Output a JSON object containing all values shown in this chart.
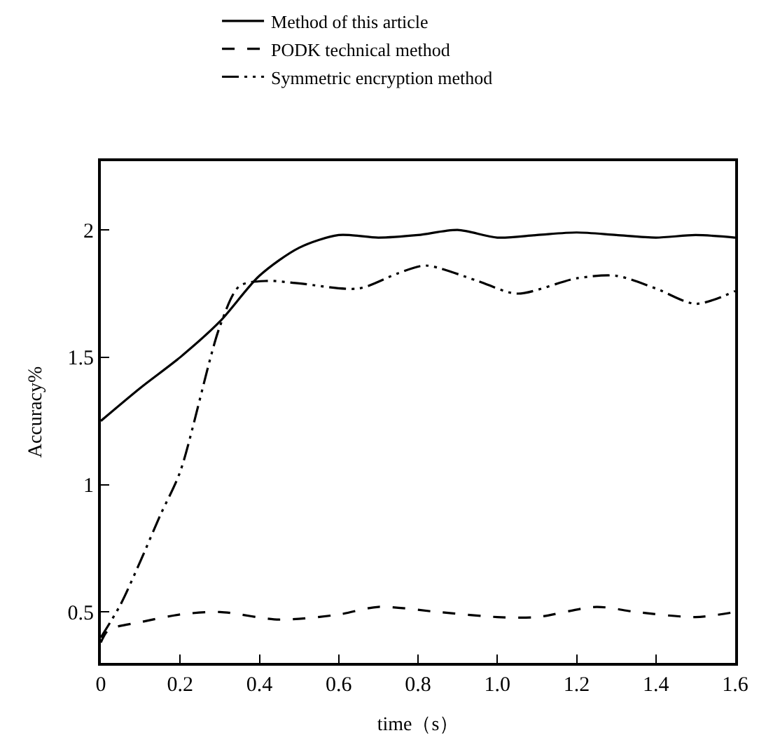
{
  "chart_data": {
    "type": "line",
    "xlabel": "time（s）",
    "ylabel": "Accuracy%",
    "xlim": [
      0,
      1.6
    ],
    "ylim": [
      0.3,
      2.27
    ],
    "xticks": [
      0,
      0.2,
      0.4,
      0.6,
      0.8,
      {
        "value": 1.0,
        "label": "1.0"
      },
      1.2,
      1.4,
      1.6
    ],
    "yticks": [
      0.5,
      1,
      1.5,
      2
    ],
    "legend": "top",
    "series": [
      {
        "name": "Method of this article",
        "color": "#000000",
        "line_style": "solid",
        "x": [
          0,
          0.1,
          0.2,
          0.3,
          0.4,
          0.5,
          0.6,
          0.7,
          0.8,
          0.9,
          1.0,
          1.1,
          1.2,
          1.3,
          1.4,
          1.5,
          1.6
        ],
        "values": [
          1.25,
          1.38,
          1.5,
          1.64,
          1.82,
          1.93,
          1.98,
          1.97,
          1.98,
          2.0,
          1.97,
          1.98,
          1.99,
          1.98,
          1.97,
          1.98,
          1.97
        ]
      },
      {
        "name": "PODK technical method",
        "color": "#000000",
        "line_style": "dashed",
        "x": [
          0,
          0.02,
          0.1,
          0.2,
          0.3,
          0.45,
          0.6,
          0.7,
          0.85,
          1.0,
          1.1,
          1.25,
          1.35,
          1.5,
          1.6
        ],
        "values": [
          0.38,
          0.43,
          0.46,
          0.49,
          0.5,
          0.47,
          0.49,
          0.52,
          0.5,
          0.48,
          0.48,
          0.52,
          0.5,
          0.48,
          0.5
        ]
      },
      {
        "name": "Symmetric encryption method",
        "color": "#000000",
        "line_style": "dashdot",
        "x": [
          0,
          0.05,
          0.1,
          0.15,
          0.2,
          0.3,
          0.35,
          0.42,
          0.5,
          0.65,
          0.75,
          0.82,
          0.95,
          1.05,
          1.2,
          1.3,
          1.4,
          1.5,
          1.6
        ],
        "values": [
          0.4,
          0.53,
          0.7,
          0.88,
          1.05,
          1.62,
          1.78,
          1.8,
          1.79,
          1.77,
          1.83,
          1.86,
          1.8,
          1.75,
          1.81,
          1.82,
          1.77,
          1.71,
          1.76
        ]
      }
    ]
  }
}
